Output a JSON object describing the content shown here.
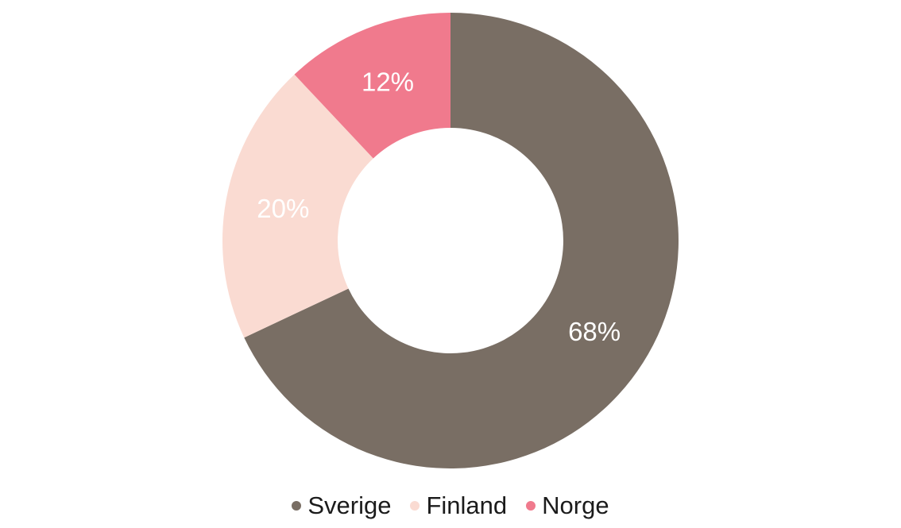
{
  "page": {
    "background": "#FFFFFF"
  },
  "chart_data": {
    "type": "pie",
    "subtype": "donut",
    "title": "",
    "categories": [
      "Sverige",
      "Finland",
      "Norge"
    ],
    "values": [
      68,
      20,
      12
    ],
    "data_labels": [
      "68%",
      "20%",
      "12%"
    ],
    "colors": [
      "#796E64",
      "#FADBD2",
      "#F07A8D"
    ],
    "data_label_color": "#FFFFFF",
    "start_angle_deg": 0,
    "direction": "clockwise",
    "inner_radius_ratio": 0.495,
    "legend_position": "bottom",
    "legend_text_color": "#1B1B1B"
  }
}
